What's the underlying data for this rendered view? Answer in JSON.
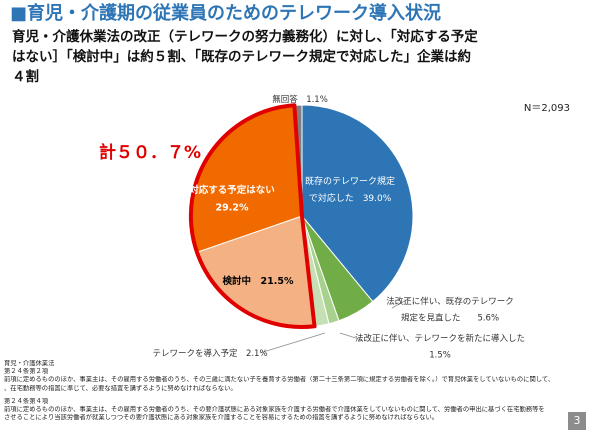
{
  "slide": {
    "title": "■育児・介護期の従業員のためのテレワーク導入状況",
    "lead_line1": "育児・介護休業法の改正（テレワークの努力義務化）に対し、「対応する予定",
    "lead_line2": "はない］「検討中」は約５割、「既存のテレワーク規定で対応した」企業は約",
    "lead_line3": "４割",
    "page_number": "3"
  },
  "notes": {
    "law_name": "育児・介護休業法",
    "art1_title": "第２４条第２項",
    "art1_line1": "前項に定めるもののほか、事業主は、その雇用する労働者のうち、その三歳に満たない子を養育する労働者（第二十三条第二項に規定する労働者を除く。）で育児休業をしていないものに関して、",
    "art1_line2": "、在宅勤務等の措置に準じて、必要な措置を講ずるように努めなければならない。",
    "art2_title": "第２４条第４項",
    "art2_line1": "前項に定めるもののほか、事業主は、その雇用する労働者のうち、その要介護状態にある対象家族を介護する労働者で介護休業をしていないものに関して、労働者の申出に基づく在宅勤務等を",
    "art2_line2": "させることにより当該労働者が就業しつつその要介護状態にある対象家族を介護することを容易にするための措置を講ずるように努めなければならない。"
  },
  "chart_data": {
    "type": "pie",
    "sample_size": "N＝2,093",
    "highlight_total": "計５０．７%",
    "start_angle_deg": 0,
    "direction": "clockwise",
    "slices": [
      {
        "name": "既存のテレワーク規定で対応した",
        "value": 39.0,
        "color": "#2e75b6",
        "label_inside": true,
        "label_lines": [
          "既存のテレワーク規定",
          "で対応した　39.0%"
        ]
      },
      {
        "name": "法改正に伴い、既存のテレワーク規定を見直した",
        "value": 5.6,
        "color": "#70ad47",
        "label_inside": false,
        "label_lines": [
          "法改正に伴い、既存のテレワーク",
          "規定を見直した　　5.6%"
        ]
      },
      {
        "name": "法改正に伴い、テレワークを新たに導入した",
        "value": 1.5,
        "color": "#a9d18e",
        "label_inside": false,
        "label_lines": [
          "法改正に伴い、テレワークを新たに導入した",
          "1.5%"
        ]
      },
      {
        "name": "テレワークを導入予定",
        "value": 2.1,
        "color": "#c5e0b4",
        "label_inside": false,
        "label_lines": [
          "テレワークを導入予定　2.1%"
        ]
      },
      {
        "name": "検討中",
        "value": 21.5,
        "color": "#f4b183",
        "label_inside": true,
        "highlight": true,
        "label_lines": [
          "検討中　21.5%"
        ]
      },
      {
        "name": "対応する予定はない",
        "value": 29.2,
        "color": "#f06a00",
        "label_inside": true,
        "highlight": true,
        "label_lines": [
          "対応する予定はない",
          "29.2%"
        ]
      },
      {
        "name": "無回答",
        "value": 1.1,
        "color": "#7f7f7f",
        "label_inside": false,
        "label_lines": [
          "無回答　1.1%"
        ]
      }
    ]
  }
}
